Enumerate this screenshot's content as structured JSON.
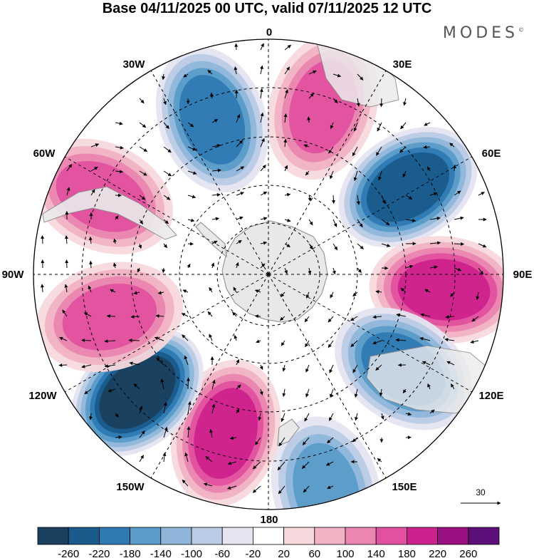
{
  "title": "Base 04/11/2025 00 UTC, valid 07/11/2025 12 UTC",
  "brand": "MODES",
  "brand_mark": "©",
  "longitude_labels": {
    "lon_0": "0",
    "lon_30e": "30E",
    "lon_60e": "60E",
    "lon_90e": "90E",
    "lon_120e": "120E",
    "lon_150e": "150E",
    "lon_180": "180",
    "lon_150w": "150W",
    "lon_120w": "120W",
    "lon_90w": "90W",
    "lon_60w": "60W",
    "lon_30w": "30W"
  },
  "reference_vector": "30",
  "colorbar": {
    "ticks": [
      "-260",
      "-220",
      "-180",
      "-140",
      "-100",
      "-60",
      "-20",
      "20",
      "60",
      "100",
      "140",
      "180",
      "220",
      "260"
    ],
    "colors": [
      "#1b3f5f",
      "#1a5b8c",
      "#2f7ab3",
      "#5a9bc9",
      "#8fb6da",
      "#bccbe5",
      "#e5e5f2",
      "#ffffff",
      "#f7d9dd",
      "#f1b3c3",
      "#ea86b1",
      "#e2519f",
      "#cd228d",
      "#991180",
      "#5d0f79"
    ]
  },
  "map_data": {
    "projection": "south polar stereographic",
    "field": "geopotential anomaly with wind vectors",
    "anomaly_centers": [
      {
        "name": "negative-30w",
        "lon": -20,
        "lat": -48,
        "value": -180
      },
      {
        "name": "positive-60w",
        "lon": -65,
        "lat": -43,
        "value": 140
      },
      {
        "name": "positive-15e",
        "lon": 18,
        "lat": -45,
        "value": 160
      },
      {
        "name": "negative-60e",
        "lon": 58,
        "lat": -48,
        "value": -220
      },
      {
        "name": "positive-90e",
        "lon": 95,
        "lat": -45,
        "value": 180
      },
      {
        "name": "negative-120e",
        "lon": 125,
        "lat": -48,
        "value": -200
      },
      {
        "name": "negative-150e",
        "lon": 165,
        "lat": -33,
        "value": -140
      },
      {
        "name": "positive-160w",
        "lon": -165,
        "lat": -48,
        "value": 200
      },
      {
        "name": "negative-130w",
        "lon": -132,
        "lat": -45,
        "value": -260
      },
      {
        "name": "positive-100w",
        "lon": -105,
        "lat": -48,
        "value": 140
      }
    ]
  }
}
